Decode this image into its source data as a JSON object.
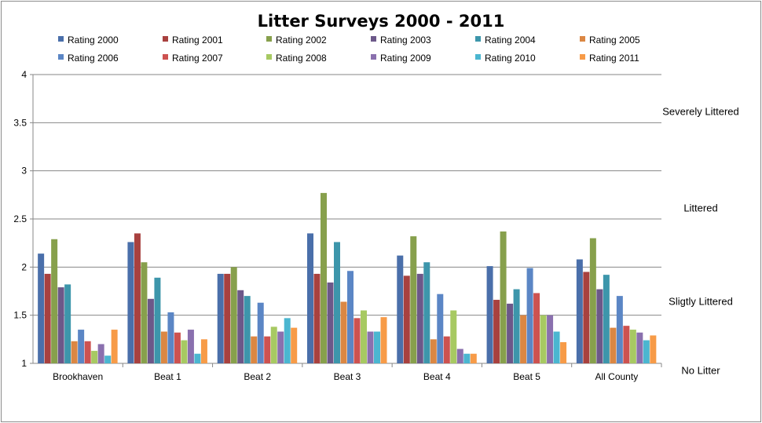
{
  "chart_data": {
    "type": "bar",
    "title": "Litter Surveys 2000 - 2011",
    "categories": [
      "Brookhaven",
      "Beat 1",
      "Beat 2",
      "Beat 3",
      "Beat 4",
      "Beat 5",
      "All County"
    ],
    "ylim": [
      1,
      4
    ],
    "yticks": [
      "1",
      "1.5",
      "2",
      "2.5",
      "3",
      "3.5",
      "4"
    ],
    "grid": true,
    "legend_position": "top",
    "band_labels": [
      {
        "label": "Severely Littered",
        "value": 3.62
      },
      {
        "label": "Littered",
        "value": 2.62
      },
      {
        "label": "Sligtly Littered",
        "value": 1.65
      },
      {
        "label": "No Litter",
        "value": 0.93
      }
    ],
    "series": [
      {
        "name": "Rating 2000",
        "color": "#4a6faa",
        "values": [
          2.14,
          2.26,
          1.93,
          2.35,
          2.12,
          2.01,
          2.08
        ]
      },
      {
        "name": "Rating 2001",
        "color": "#a8413f",
        "values": [
          1.93,
          2.35,
          1.93,
          1.93,
          1.91,
          1.66,
          1.95
        ]
      },
      {
        "name": "Rating 2002",
        "color": "#87a04c",
        "values": [
          2.29,
          2.05,
          2.0,
          2.77,
          2.32,
          2.37,
          2.3
        ]
      },
      {
        "name": "Rating 2003",
        "color": "#6c5889",
        "values": [
          1.79,
          1.67,
          1.76,
          1.84,
          1.93,
          1.62,
          1.77
        ]
      },
      {
        "name": "Rating 2004",
        "color": "#3d96ab",
        "values": [
          1.82,
          1.89,
          1.7,
          2.26,
          2.05,
          1.77,
          1.92
        ]
      },
      {
        "name": "Rating 2005",
        "color": "#db8743",
        "values": [
          1.23,
          1.33,
          1.28,
          1.64,
          1.25,
          1.5,
          1.37
        ]
      },
      {
        "name": "Rating 2006",
        "color": "#5b86c5",
        "values": [
          1.35,
          1.53,
          1.63,
          1.96,
          1.72,
          1.99,
          1.7
        ]
      },
      {
        "name": "Rating 2007",
        "color": "#cd5250",
        "values": [
          1.23,
          1.32,
          1.28,
          1.47,
          1.28,
          1.73,
          1.39
        ]
      },
      {
        "name": "Rating 2008",
        "color": "#a7c962",
        "values": [
          1.13,
          1.24,
          1.38,
          1.55,
          1.55,
          1.5,
          1.35
        ]
      },
      {
        "name": "Rating 2009",
        "color": "#8a70ae",
        "values": [
          1.2,
          1.35,
          1.33,
          1.33,
          1.15,
          1.5,
          1.32
        ]
      },
      {
        "name": "Rating 2010",
        "color": "#4bb6d0",
        "values": [
          1.08,
          1.1,
          1.47,
          1.33,
          1.1,
          1.33,
          1.24
        ]
      },
      {
        "name": "Rating 2011",
        "color": "#f79b48",
        "values": [
          1.35,
          1.25,
          1.37,
          1.48,
          1.1,
          1.22,
          1.29
        ]
      }
    ]
  }
}
